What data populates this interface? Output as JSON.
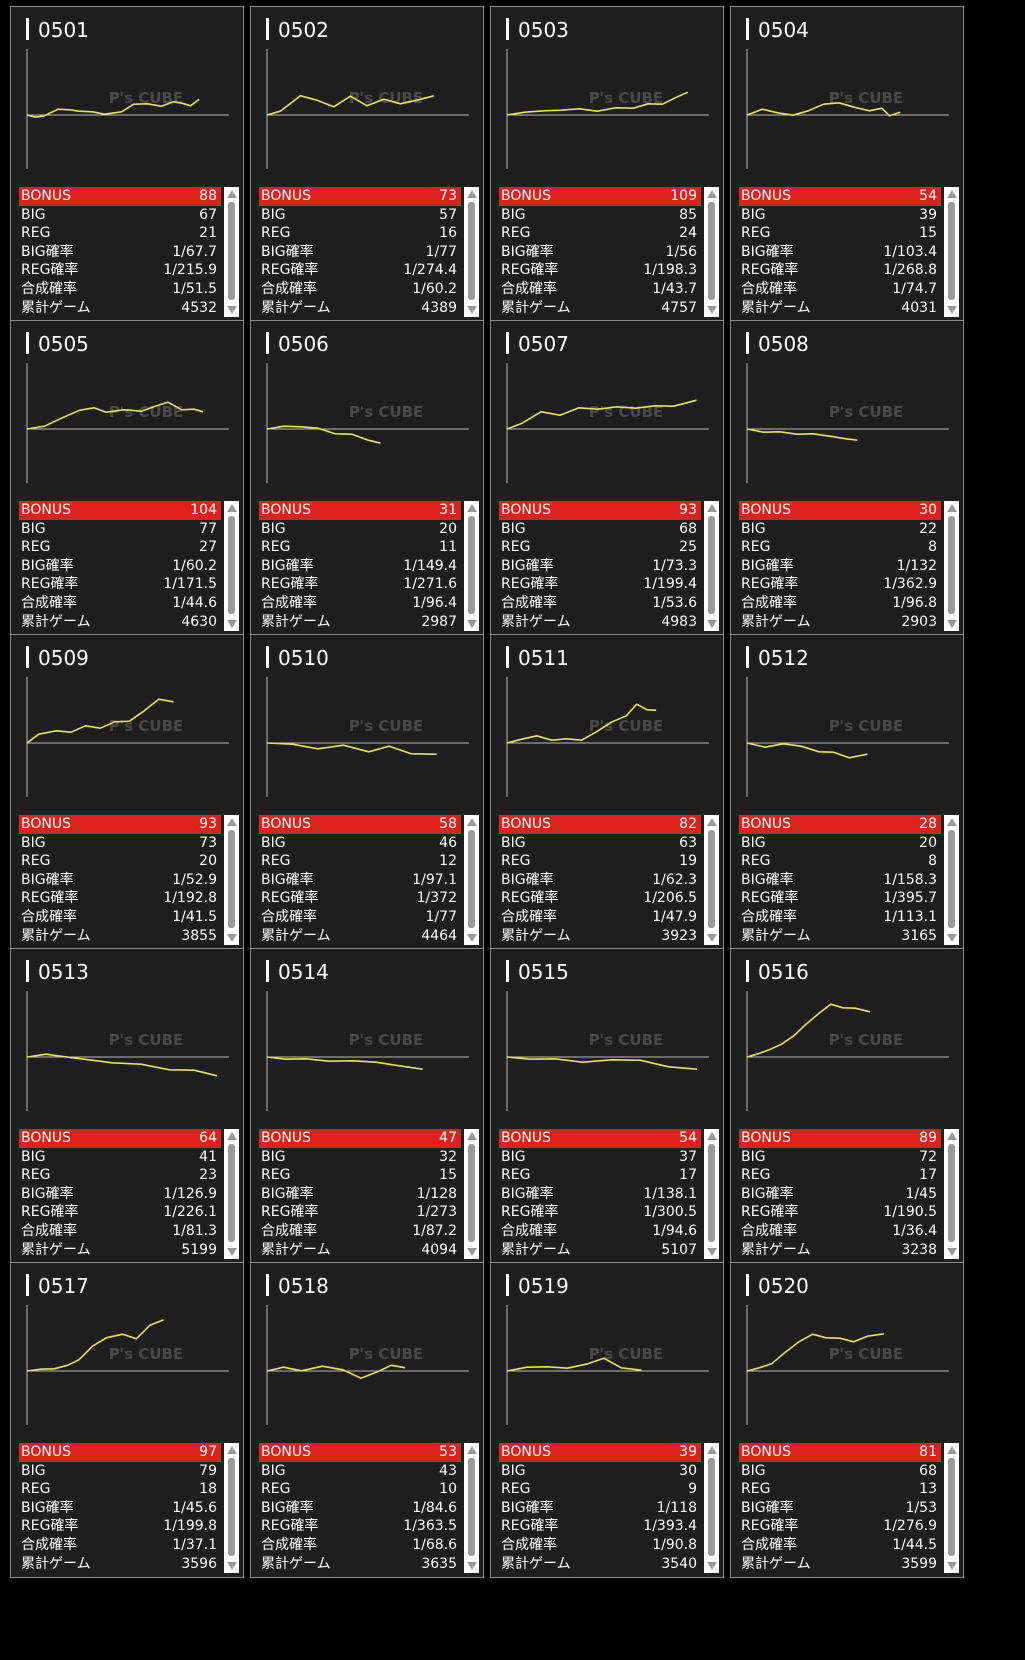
{
  "labels": {
    "bonus": "BONUS",
    "big": "BIG",
    "reg": "REG",
    "big_rate": "BIG確率",
    "reg_rate": "REG確率",
    "combined_rate": "合成確率",
    "total_games": "累計ゲーム"
  },
  "watermark": "P's CUBE",
  "colors": {
    "bonus_bg": "#e0201c",
    "graph_line": "#f0e050",
    "card_bg": "#1e1e1e"
  },
  "machines": [
    {
      "id": "0501",
      "bonus": "88",
      "big": "67",
      "reg": "21",
      "big_rate": "1/67.7",
      "reg_rate": "1/215.9",
      "combined_rate": "1/51.5",
      "total_games": "4532",
      "graph": [
        [
          0,
          0
        ],
        [
          0.05,
          -3
        ],
        [
          0.1,
          0
        ],
        [
          0.18,
          5
        ],
        [
          0.25,
          6
        ],
        [
          0.3,
          3
        ],
        [
          0.38,
          4
        ],
        [
          0.45,
          0
        ],
        [
          0.55,
          4
        ],
        [
          0.62,
          10
        ],
        [
          0.7,
          12
        ],
        [
          0.78,
          8
        ],
        [
          0.85,
          14
        ],
        [
          0.9,
          11
        ],
        [
          0.95,
          10
        ],
        [
          1,
          15
        ]
      ]
    },
    {
      "id": "0502",
      "bonus": "73",
      "big": "57",
      "reg": "16",
      "big_rate": "1/77",
      "reg_rate": "1/274.4",
      "combined_rate": "1/60.2",
      "total_games": "4389",
      "graph": [
        [
          0,
          0
        ],
        [
          0.08,
          3
        ],
        [
          0.2,
          20
        ],
        [
          0.3,
          14
        ],
        [
          0.4,
          9
        ],
        [
          0.5,
          18
        ],
        [
          0.6,
          10
        ],
        [
          0.7,
          15
        ],
        [
          0.8,
          12
        ],
        [
          0.9,
          14
        ],
        [
          1,
          20
        ]
      ]
    },
    {
      "id": "0503",
      "bonus": "109",
      "big": "85",
      "reg": "24",
      "big_rate": "1/56",
      "reg_rate": "1/198.3",
      "combined_rate": "1/43.7",
      "total_games": "4757",
      "graph": [
        [
          0,
          0
        ],
        [
          0.1,
          2
        ],
        [
          0.2,
          5
        ],
        [
          0.3,
          4
        ],
        [
          0.4,
          7
        ],
        [
          0.5,
          3
        ],
        [
          0.6,
          8
        ],
        [
          0.7,
          6
        ],
        [
          0.78,
          12
        ],
        [
          0.86,
          10
        ],
        [
          0.93,
          18
        ],
        [
          1,
          22
        ]
      ]
    },
    {
      "id": "0504",
      "bonus": "54",
      "big": "39",
      "reg": "15",
      "big_rate": "1/103.4",
      "reg_rate": "1/268.8",
      "combined_rate": "1/74.7",
      "total_games": "4031",
      "graph": [
        [
          0,
          0
        ],
        [
          0.1,
          5
        ],
        [
          0.2,
          3
        ],
        [
          0.3,
          -1
        ],
        [
          0.4,
          5
        ],
        [
          0.5,
          10
        ],
        [
          0.6,
          13
        ],
        [
          0.7,
          7
        ],
        [
          0.8,
          5
        ],
        [
          0.88,
          6
        ],
        [
          0.93,
          0
        ],
        [
          1,
          2
        ]
      ]
    },
    {
      "id": "0505",
      "bonus": "104",
      "big": "77",
      "reg": "27",
      "big_rate": "1/60.2",
      "reg_rate": "1/171.5",
      "combined_rate": "1/44.6",
      "total_games": "4630",
      "graph": [
        [
          0,
          0
        ],
        [
          0.1,
          2
        ],
        [
          0.2,
          12
        ],
        [
          0.3,
          18
        ],
        [
          0.38,
          22
        ],
        [
          0.45,
          16
        ],
        [
          0.55,
          20
        ],
        [
          0.65,
          17
        ],
        [
          0.72,
          23
        ],
        [
          0.8,
          26
        ],
        [
          0.88,
          20
        ],
        [
          0.95,
          19
        ],
        [
          1,
          18
        ]
      ]
    },
    {
      "id": "0506",
      "bonus": "31",
      "big": "20",
      "reg": "11",
      "big_rate": "1/149.4",
      "reg_rate": "1/271.6",
      "combined_rate": "1/96.4",
      "total_games": "2987",
      "graph": [
        [
          0,
          0
        ],
        [
          0.15,
          2
        ],
        [
          0.3,
          3
        ],
        [
          0.45,
          0
        ],
        [
          0.6,
          -4
        ],
        [
          0.75,
          -6
        ],
        [
          0.88,
          -10
        ],
        [
          1,
          -15
        ]
      ]
    },
    {
      "id": "0507",
      "bonus": "93",
      "big": "68",
      "reg": "25",
      "big_rate": "1/73.3",
      "reg_rate": "1/199.4",
      "combined_rate": "1/53.6",
      "total_games": "4983",
      "graph": [
        [
          0,
          0
        ],
        [
          0.08,
          5
        ],
        [
          0.18,
          18
        ],
        [
          0.28,
          13
        ],
        [
          0.38,
          22
        ],
        [
          0.48,
          19
        ],
        [
          0.58,
          23
        ],
        [
          0.68,
          20
        ],
        [
          0.78,
          24
        ],
        [
          0.88,
          22
        ],
        [
          0.95,
          27
        ],
        [
          1,
          28
        ]
      ]
    },
    {
      "id": "0508",
      "bonus": "30",
      "big": "22",
      "reg": "8",
      "big_rate": "1/132",
      "reg_rate": "1/362.9",
      "combined_rate": "1/96.8",
      "total_games": "2903",
      "graph": [
        [
          0,
          0
        ],
        [
          0.15,
          -4
        ],
        [
          0.3,
          -2
        ],
        [
          0.45,
          -6
        ],
        [
          0.6,
          -4
        ],
        [
          0.75,
          -8
        ],
        [
          0.9,
          -9
        ],
        [
          1,
          -12
        ]
      ]
    },
    {
      "id": "0509",
      "bonus": "93",
      "big": "73",
      "reg": "20",
      "big_rate": "1/52.9",
      "reg_rate": "1/192.8",
      "combined_rate": "1/41.5",
      "total_games": "3855",
      "graph": [
        [
          0,
          0
        ],
        [
          0.08,
          8
        ],
        [
          0.2,
          13
        ],
        [
          0.3,
          10
        ],
        [
          0.4,
          18
        ],
        [
          0.5,
          14
        ],
        [
          0.6,
          22
        ],
        [
          0.7,
          21
        ],
        [
          0.8,
          33
        ],
        [
          0.9,
          43
        ],
        [
          1,
          42
        ]
      ]
    },
    {
      "id": "0510",
      "bonus": "58",
      "big": "46",
      "reg": "12",
      "big_rate": "1/97.1",
      "reg_rate": "1/372",
      "combined_rate": "1/77",
      "total_games": "4464",
      "graph": [
        [
          0,
          0
        ],
        [
          0.15,
          -2
        ],
        [
          0.3,
          -5
        ],
        [
          0.45,
          -3
        ],
        [
          0.6,
          -8
        ],
        [
          0.72,
          -4
        ],
        [
          0.85,
          -10
        ],
        [
          1,
          -12
        ]
      ]
    },
    {
      "id": "0511",
      "bonus": "82",
      "big": "63",
      "reg": "19",
      "big_rate": "1/62.3",
      "reg_rate": "1/206.5",
      "combined_rate": "1/47.9",
      "total_games": "3923",
      "graph": [
        [
          0,
          0
        ],
        [
          0.1,
          3
        ],
        [
          0.2,
          8
        ],
        [
          0.3,
          2
        ],
        [
          0.4,
          5
        ],
        [
          0.5,
          2
        ],
        [
          0.6,
          12
        ],
        [
          0.7,
          20
        ],
        [
          0.8,
          28
        ],
        [
          0.87,
          38
        ],
        [
          0.94,
          34
        ],
        [
          1,
          32
        ]
      ]
    },
    {
      "id": "0512",
      "bonus": "28",
      "big": "20",
      "reg": "8",
      "big_rate": "1/158.3",
      "reg_rate": "1/395.7",
      "combined_rate": "1/113.1",
      "total_games": "3165",
      "graph": [
        [
          0,
          0
        ],
        [
          0.15,
          -5
        ],
        [
          0.3,
          0
        ],
        [
          0.45,
          -4
        ],
        [
          0.6,
          -8
        ],
        [
          0.72,
          -10
        ],
        [
          0.85,
          -14
        ],
        [
          1,
          -12
        ]
      ]
    },
    {
      "id": "0513",
      "bonus": "64",
      "big": "41",
      "reg": "23",
      "big_rate": "1/126.9",
      "reg_rate": "1/226.1",
      "combined_rate": "1/81.3",
      "total_games": "5199",
      "graph": [
        [
          0,
          0
        ],
        [
          0.1,
          2
        ],
        [
          0.2,
          1
        ],
        [
          0.3,
          -3
        ],
        [
          0.45,
          -5
        ],
        [
          0.6,
          -8
        ],
        [
          0.75,
          -12
        ],
        [
          0.88,
          -14
        ],
        [
          1,
          -18
        ]
      ]
    },
    {
      "id": "0514",
      "bonus": "47",
      "big": "32",
      "reg": "15",
      "big_rate": "1/128",
      "reg_rate": "1/273",
      "combined_rate": "1/87.2",
      "total_games": "4094",
      "graph": [
        [
          0,
          0
        ],
        [
          0.12,
          -3
        ],
        [
          0.25,
          -1
        ],
        [
          0.4,
          -5
        ],
        [
          0.55,
          -3
        ],
        [
          0.7,
          -6
        ],
        [
          0.85,
          -8
        ],
        [
          1,
          -13
        ]
      ]
    },
    {
      "id": "0515",
      "bonus": "54",
      "big": "37",
      "reg": "17",
      "big_rate": "1/138.1",
      "reg_rate": "1/300.5",
      "combined_rate": "1/94.6",
      "total_games": "5107",
      "graph": [
        [
          0,
          0
        ],
        [
          0.12,
          -3
        ],
        [
          0.25,
          -1
        ],
        [
          0.4,
          -6
        ],
        [
          0.55,
          -2
        ],
        [
          0.7,
          -4
        ],
        [
          0.85,
          -9
        ],
        [
          1,
          -13
        ]
      ]
    },
    {
      "id": "0516",
      "bonus": "89",
      "big": "72",
      "reg": "17",
      "big_rate": "1/45",
      "reg_rate": "1/190.5",
      "combined_rate": "1/36.4",
      "total_games": "3238",
      "graph": [
        [
          0,
          0
        ],
        [
          0.08,
          2
        ],
        [
          0.18,
          8
        ],
        [
          0.28,
          12
        ],
        [
          0.38,
          22
        ],
        [
          0.48,
          32
        ],
        [
          0.58,
          44
        ],
        [
          0.68,
          52
        ],
        [
          0.78,
          50
        ],
        [
          0.88,
          48
        ],
        [
          1,
          46
        ]
      ]
    },
    {
      "id": "0517",
      "bonus": "97",
      "big": "79",
      "reg": "18",
      "big_rate": "1/45.6",
      "reg_rate": "1/199.8",
      "combined_rate": "1/37.1",
      "total_games": "3596",
      "graph": [
        [
          0,
          0
        ],
        [
          0.1,
          1
        ],
        [
          0.2,
          3
        ],
        [
          0.3,
          5
        ],
        [
          0.38,
          12
        ],
        [
          0.48,
          24
        ],
        [
          0.58,
          34
        ],
        [
          0.7,
          36
        ],
        [
          0.8,
          33
        ],
        [
          0.9,
          45
        ],
        [
          1,
          52
        ]
      ]
    },
    {
      "id": "0518",
      "bonus": "53",
      "big": "43",
      "reg": "10",
      "big_rate": "1/84.6",
      "reg_rate": "1/363.5",
      "combined_rate": "1/68.6",
      "total_games": "3635",
      "graph": [
        [
          0,
          0
        ],
        [
          0.12,
          3
        ],
        [
          0.25,
          1
        ],
        [
          0.4,
          4
        ],
        [
          0.55,
          2
        ],
        [
          0.68,
          -8
        ],
        [
          0.8,
          0
        ],
        [
          0.9,
          5
        ],
        [
          1,
          4
        ]
      ]
    },
    {
      "id": "0519",
      "bonus": "39",
      "big": "30",
      "reg": "9",
      "big_rate": "1/118",
      "reg_rate": "1/393.4",
      "combined_rate": "1/90.8",
      "total_games": "3540",
      "graph": [
        [
          0,
          0
        ],
        [
          0.15,
          3
        ],
        [
          0.3,
          5
        ],
        [
          0.45,
          2
        ],
        [
          0.6,
          8
        ],
        [
          0.72,
          12
        ],
        [
          0.85,
          4
        ],
        [
          1,
          0
        ]
      ]
    },
    {
      "id": "0520",
      "bonus": "81",
      "big": "68",
      "reg": "13",
      "big_rate": "1/53",
      "reg_rate": "1/276.9",
      "combined_rate": "1/44.5",
      "total_games": "3599",
      "graph": [
        [
          0,
          0
        ],
        [
          0.08,
          2
        ],
        [
          0.18,
          8
        ],
        [
          0.28,
          18
        ],
        [
          0.38,
          30
        ],
        [
          0.48,
          36
        ],
        [
          0.58,
          34
        ],
        [
          0.68,
          32
        ],
        [
          0.78,
          30
        ],
        [
          0.88,
          34
        ],
        [
          1,
          38
        ]
      ]
    }
  ]
}
